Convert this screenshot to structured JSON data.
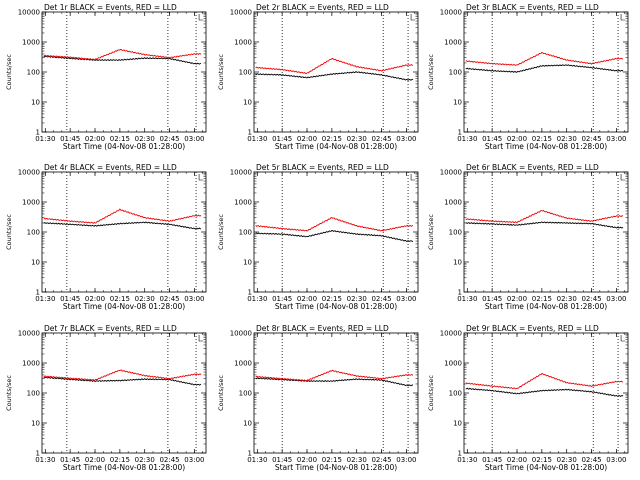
{
  "colors": {
    "events": "#000000",
    "lld": "#ee0000",
    "axes": "#000000"
  },
  "chart_data": [
    {
      "type": "line",
      "title": "Det 1r BLACK = Events, RED = LLD",
      "xlabel": "Start Time (04-Nov-08 01:28:00)",
      "ylabel": "Counts/sec",
      "yscale": "log",
      "ylim": [
        1,
        10000
      ],
      "x": [
        "01:30",
        "01:45",
        "02:00",
        "02:15",
        "02:30",
        "02:45",
        "03:00"
      ],
      "x_ticks": [
        "01:30",
        "01:45",
        "02:00",
        "02:15",
        "02:30",
        "02:45",
        "03:00"
      ],
      "y_ticks": [
        "1",
        "10",
        "100",
        "1000",
        "10000"
      ],
      "marker_times": [
        "01:43",
        "02:44",
        "03:01"
      ],
      "series": [
        {
          "name": "Events",
          "color": "black",
          "values": [
            330,
            285,
            250,
            250,
            290,
            280,
            190
          ]
        },
        {
          "name": "LLD",
          "color": "red",
          "values": [
            350,
            310,
            260,
            560,
            380,
            300,
            400
          ]
        }
      ]
    },
    {
      "type": "line",
      "title": "Det 2r BLACK = Events, RED = LLD",
      "xlabel": "Start Time (04-Nov-08 01:28:00)",
      "ylabel": "Counts/sec",
      "yscale": "log",
      "ylim": [
        1,
        10000
      ],
      "x": [
        "01:30",
        "01:45",
        "02:00",
        "02:15",
        "02:30",
        "02:45",
        "03:00"
      ],
      "x_ticks": [
        "01:30",
        "01:45",
        "02:00",
        "02:15",
        "02:30",
        "02:45",
        "03:00"
      ],
      "y_ticks": [
        "1",
        "10",
        "100",
        "1000",
        "10000"
      ],
      "marker_times": [
        "01:45",
        "02:46",
        "03:01"
      ],
      "series": [
        {
          "name": "Events",
          "color": "black",
          "values": [
            85,
            80,
            65,
            85,
            100,
            80,
            55
          ]
        },
        {
          "name": "LLD",
          "color": "red",
          "values": [
            140,
            120,
            90,
            280,
            150,
            110,
            170
          ]
        }
      ]
    },
    {
      "type": "line",
      "title": "Det 3r BLACK = Events, RED = LLD",
      "xlabel": "Start Time (04-Nov-08 01:28:00)",
      "ylabel": "Counts/sec",
      "yscale": "log",
      "ylim": [
        1,
        10000
      ],
      "x": [
        "01:30",
        "01:45",
        "02:00",
        "02:15",
        "02:30",
        "02:45",
        "03:00"
      ],
      "x_ticks": [
        "01:30",
        "01:45",
        "02:00",
        "02:15",
        "02:30",
        "02:45",
        "03:00"
      ],
      "y_ticks": [
        "1",
        "10",
        "100",
        "1000",
        "10000"
      ],
      "marker_times": [
        "01:45",
        "02:46",
        "03:01"
      ],
      "series": [
        {
          "name": "Events",
          "color": "black",
          "values": [
            130,
            110,
            100,
            160,
            170,
            140,
            110
          ]
        },
        {
          "name": "LLD",
          "color": "red",
          "values": [
            230,
            190,
            170,
            440,
            250,
            190,
            280
          ]
        }
      ]
    },
    {
      "type": "line",
      "title": "Det 4r BLACK = Events, RED = LLD",
      "xlabel": "Start Time (04-Nov-08 01:28:00)",
      "ylabel": "Counts/sec",
      "yscale": "log",
      "ylim": [
        1,
        10000
      ],
      "x": [
        "01:30",
        "01:45",
        "02:00",
        "02:15",
        "02:30",
        "02:45",
        "03:00"
      ],
      "x_ticks": [
        "01:30",
        "01:45",
        "02:00",
        "02:15",
        "02:30",
        "02:45",
        "03:00"
      ],
      "y_ticks": [
        "1",
        "10",
        "100",
        "1000",
        "10000"
      ],
      "marker_times": [
        "01:43",
        "02:44",
        "03:01"
      ],
      "series": [
        {
          "name": "Events",
          "color": "black",
          "values": [
            200,
            180,
            160,
            190,
            210,
            180,
            130
          ]
        },
        {
          "name": "LLD",
          "color": "red",
          "values": [
            280,
            230,
            200,
            560,
            300,
            230,
            350
          ]
        }
      ]
    },
    {
      "type": "line",
      "title": "Det 5r BLACK = Events, RED = LLD",
      "xlabel": "Start Time (04-Nov-08 01:28:00)",
      "ylabel": "Counts/sec",
      "yscale": "log",
      "ylim": [
        1,
        10000
      ],
      "x": [
        "01:30",
        "01:45",
        "02:00",
        "02:15",
        "02:30",
        "02:45",
        "03:00"
      ],
      "x_ticks": [
        "01:30",
        "01:45",
        "02:00",
        "02:15",
        "02:30",
        "02:45",
        "03:00"
      ],
      "y_ticks": [
        "1",
        "10",
        "100",
        "1000",
        "10000"
      ],
      "marker_times": [
        "01:45",
        "02:46",
        "03:01"
      ],
      "series": [
        {
          "name": "Events",
          "color": "black",
          "values": [
            90,
            85,
            70,
            110,
            85,
            75,
            50
          ]
        },
        {
          "name": "LLD",
          "color": "red",
          "values": [
            160,
            130,
            110,
            300,
            160,
            110,
            160
          ]
        }
      ]
    },
    {
      "type": "line",
      "title": "Det 6r BLACK = Events, RED = LLD",
      "xlabel": "Start Time (04-Nov-08 01:28:00)",
      "ylabel": "Counts/sec",
      "yscale": "log",
      "ylim": [
        1,
        10000
      ],
      "x": [
        "01:30",
        "01:45",
        "02:00",
        "02:15",
        "02:30",
        "02:45",
        "03:00"
      ],
      "x_ticks": [
        "01:30",
        "01:45",
        "02:00",
        "02:15",
        "02:30",
        "02:45",
        "03:00"
      ],
      "y_ticks": [
        "1",
        "10",
        "100",
        "1000",
        "10000"
      ],
      "marker_times": [
        "01:45",
        "02:46",
        "03:01"
      ],
      "series": [
        {
          "name": "Events",
          "color": "black",
          "values": [
            200,
            185,
            170,
            210,
            200,
            190,
            140
          ]
        },
        {
          "name": "LLD",
          "color": "red",
          "values": [
            270,
            230,
            210,
            520,
            290,
            230,
            340
          ]
        }
      ]
    },
    {
      "type": "line",
      "title": "Det 7r BLACK = Events, RED = LLD",
      "xlabel": "Start Time (04-Nov-08 01:28:00)",
      "ylabel": "Counts/sec",
      "yscale": "log",
      "ylim": [
        1,
        10000
      ],
      "x": [
        "01:30",
        "01:45",
        "02:00",
        "02:15",
        "02:30",
        "02:45",
        "03:00"
      ],
      "x_ticks": [
        "01:30",
        "01:45",
        "02:00",
        "02:15",
        "02:30",
        "02:45",
        "03:00"
      ],
      "y_ticks": [
        "1",
        "10",
        "100",
        "1000",
        "10000"
      ],
      "marker_times": [
        "01:43",
        "02:44",
        "03:01"
      ],
      "series": [
        {
          "name": "Events",
          "color": "black",
          "values": [
            330,
            285,
            250,
            260,
            290,
            280,
            190
          ]
        },
        {
          "name": "LLD",
          "color": "red",
          "values": [
            360,
            310,
            270,
            580,
            380,
            300,
            420
          ]
        }
      ]
    },
    {
      "type": "line",
      "title": "Det 8r BLACK = Events, RED = LLD",
      "xlabel": "Start Time (04-Nov-08 01:28:00)",
      "ylabel": "Counts/sec",
      "yscale": "log",
      "ylim": [
        1,
        10000
      ],
      "x": [
        "01:30",
        "01:45",
        "02:00",
        "02:15",
        "02:30",
        "02:45",
        "03:00"
      ],
      "x_ticks": [
        "01:30",
        "01:45",
        "02:00",
        "02:15",
        "02:30",
        "02:45",
        "03:00"
      ],
      "y_ticks": [
        "1",
        "10",
        "100",
        "1000",
        "10000"
      ],
      "marker_times": [
        "01:45",
        "02:46",
        "03:01"
      ],
      "series": [
        {
          "name": "Events",
          "color": "black",
          "values": [
            310,
            280,
            250,
            250,
            290,
            270,
            180
          ]
        },
        {
          "name": "LLD",
          "color": "red",
          "values": [
            350,
            300,
            260,
            560,
            370,
            300,
            400
          ]
        }
      ]
    },
    {
      "type": "line",
      "title": "Det 9r BLACK = Events, RED = LLD",
      "xlabel": "Start Time (04-Nov-08 01:28:00)",
      "ylabel": "Counts/sec",
      "yscale": "log",
      "ylim": [
        1,
        10000
      ],
      "x": [
        "01:30",
        "01:45",
        "02:00",
        "02:15",
        "02:30",
        "02:45",
        "03:00"
      ],
      "x_ticks": [
        "01:30",
        "01:45",
        "02:00",
        "02:15",
        "02:30",
        "02:45",
        "03:00"
      ],
      "y_ticks": [
        "1",
        "10",
        "100",
        "1000",
        "10000"
      ],
      "marker_times": [
        "01:45",
        "02:46",
        "03:01"
      ],
      "series": [
        {
          "name": "Events",
          "color": "black",
          "values": [
            140,
            120,
            95,
            120,
            130,
            110,
            80
          ]
        },
        {
          "name": "LLD",
          "color": "red",
          "values": [
            210,
            170,
            140,
            440,
            220,
            170,
            240
          ]
        }
      ]
    }
  ]
}
